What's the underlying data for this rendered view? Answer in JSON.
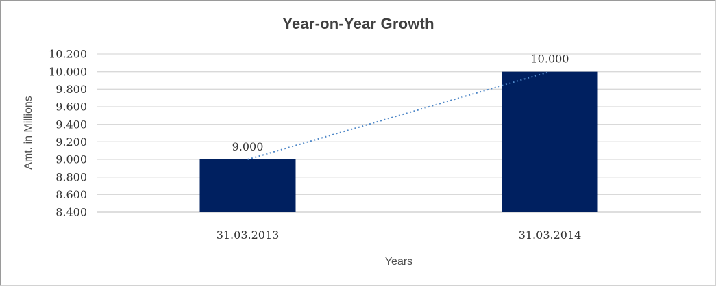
{
  "chart_data": {
    "type": "bar",
    "title": "Year-on-Year Growth",
    "xlabel": "Years",
    "ylabel": "Amt. in Millions",
    "categories": [
      "31.03.2013",
      "31.03.2014"
    ],
    "values": [
      9000,
      10000
    ],
    "data_labels": [
      "9.000",
      "10.000"
    ],
    "ylim": [
      8400,
      10200
    ],
    "ytick_step": 200,
    "ytick_labels": [
      "8.400",
      "8.600",
      "8.800",
      "9.000",
      "9.200",
      "9.400",
      "9.600",
      "9.800",
      "10.000",
      "10.200"
    ],
    "grid": true,
    "legend": "none",
    "trendline": {
      "type": "linear",
      "style": "dotted"
    },
    "colors": {
      "bar": "#002060",
      "trendline": "#4E87C7",
      "gridline": "#D9D9D9",
      "axis_line": "#C9C9C9",
      "title_text": "#404040",
      "label_text": "#333333",
      "axis_title_text": "#4D4D4D",
      "frame_border": "#BFBFBF",
      "background": "#FFFFFF"
    }
  }
}
